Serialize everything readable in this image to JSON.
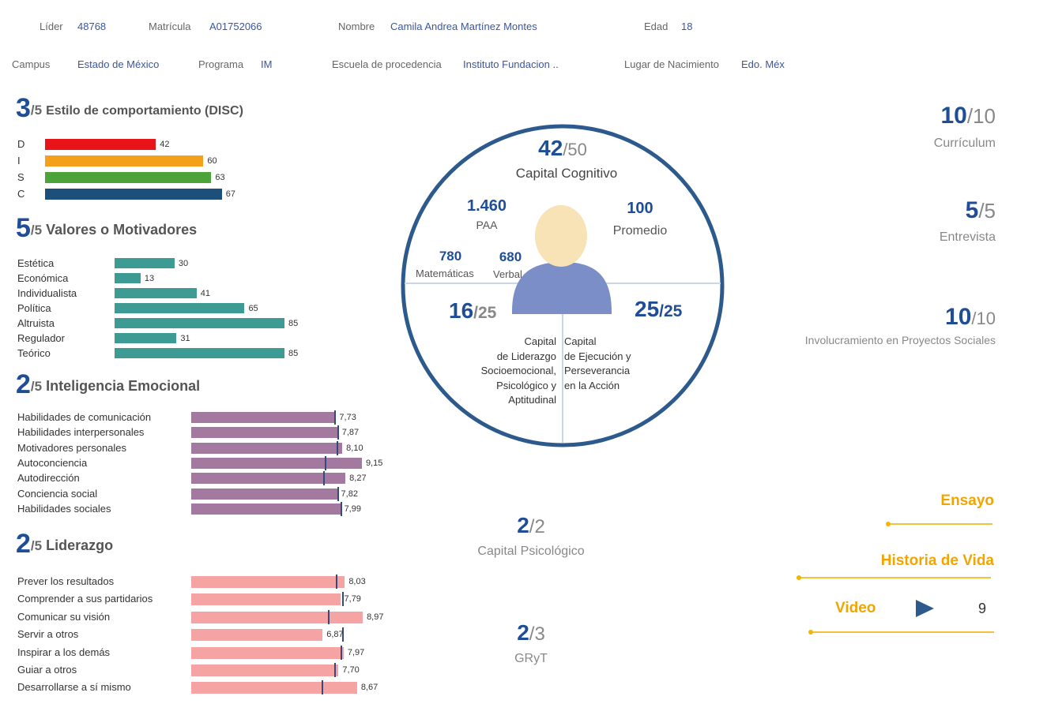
{
  "header": {
    "row1": [
      {
        "label": "Líder",
        "value": "48768"
      },
      {
        "label": "Matrícula",
        "value": "A01752066"
      },
      {
        "label": "Nombre",
        "value": "Camila Andrea Martínez Montes"
      },
      {
        "label": "Edad",
        "value": "18"
      }
    ],
    "row2": [
      {
        "label": "Campus",
        "value": "Estado de México"
      },
      {
        "label": "Programa",
        "value": "IM"
      },
      {
        "label": "Escuela de procedencia",
        "value": "Instituto Fundacion .."
      },
      {
        "label": "Lugar de Nacimiento",
        "value": "Edo. Méx"
      }
    ]
  },
  "colors": {
    "primary": "#1f4e96",
    "disc": [
      "#e8141a",
      "#f5a01a",
      "#4ba33a",
      "#1c4f7a"
    ],
    "valores": "#3d9b94",
    "emocional": "#a4799f",
    "liderazgo": "#f5a3a3",
    "marker": "#334a7a",
    "accent": "#f0a500"
  },
  "disc": {
    "score": "3",
    "den": "/5",
    "title": "Estilo de comportamiento (DISC)",
    "items": [
      {
        "label": "D",
        "value": 42
      },
      {
        "label": "I",
        "value": 60
      },
      {
        "label": "S",
        "value": 63
      },
      {
        "label": "C",
        "value": 67
      }
    ]
  },
  "valores": {
    "score": "5",
    "den": "/5",
    "title": "Valores o Motivadores",
    "items": [
      {
        "label": "Estética",
        "value": 30
      },
      {
        "label": "Económica",
        "value": 13
      },
      {
        "label": "Individualista",
        "value": 41
      },
      {
        "label": "Política",
        "value": 65
      },
      {
        "label": "Altruista",
        "value": 85
      },
      {
        "label": "Regulador",
        "value": 31
      },
      {
        "label": "Teórico",
        "value": 85
      }
    ]
  },
  "emocional": {
    "score": "2",
    "den": "/5",
    "title": "Inteligencia Emocional",
    "items": [
      {
        "label": "Habilidades de comunicación",
        "value": "7,73",
        "num": 7.73,
        "ref": 7.7
      },
      {
        "label": "Habilidades interpersonales",
        "value": "7,87",
        "num": 7.87,
        "ref": 7.9
      },
      {
        "label": "Motivadores personales",
        "value": "8,10",
        "num": 8.1,
        "ref": 7.85
      },
      {
        "label": "Autoconciencia",
        "value": "9,15",
        "num": 9.15,
        "ref": 7.2
      },
      {
        "label": "Autodirección",
        "value": "8,27",
        "num": 8.27,
        "ref": 7.1
      },
      {
        "label": "Conciencia social",
        "value": "7,82",
        "num": 7.82,
        "ref": 7.9
      },
      {
        "label": "Habilidades sociales",
        "value": "7,99",
        "num": 7.99,
        "ref": 8.05
      }
    ]
  },
  "liderazgo": {
    "score": "2",
    "den": "/5",
    "title": "Liderazgo",
    "items": [
      {
        "label": "Prever los resultados",
        "value": "8,03",
        "num": 8.03,
        "ref": 7.6
      },
      {
        "label": "Comprender a sus partidarios",
        "value": "7,79",
        "num": 7.79,
        "ref": 7.95
      },
      {
        "label": "Comunicar su visión",
        "value": "8,97",
        "num": 8.97,
        "ref": 7.2
      },
      {
        "label": "Servir a otros",
        "value": "6,87",
        "num": 6.87,
        "ref": 7.95
      },
      {
        "label": "Inspirar a los demás",
        "value": "7,97",
        "num": 7.97,
        "ref": 7.85
      },
      {
        "label": "Guiar a otros",
        "value": "7,70",
        "num": 7.7,
        "ref": 7.5
      },
      {
        "label": "Desarrollarse a sí mismo",
        "value": "8,67",
        "num": 8.67,
        "ref": 6.85
      }
    ]
  },
  "circle": {
    "cognitivo": {
      "score": "42",
      "den": "/50",
      "label": "Capital Cognitivo"
    },
    "paa": {
      "value": "1.460",
      "label": "PAA"
    },
    "promedio": {
      "value": "100",
      "label": "Promedio"
    },
    "matematicas": {
      "value": "780",
      "label": "Matemáticas"
    },
    "verbal": {
      "value": "680",
      "label": "Verbal"
    },
    "liderazgo": {
      "score": "16",
      "den": "/25",
      "lines": [
        "Capital",
        "de Liderazgo",
        "Socioemocional,",
        "Psicológico y",
        "Aptitudinal"
      ]
    },
    "ejecucion": {
      "score": "25",
      "den": "/25",
      "lines": [
        "Capital",
        "de Ejecución y",
        "Perseverancia",
        "en la Acción"
      ]
    }
  },
  "right": {
    "curriculum": {
      "score": "10",
      "den": "/10",
      "label": "Currículum"
    },
    "entrevista": {
      "score": "5",
      "den": "/5",
      "label": "Entrevista"
    },
    "involucramiento": {
      "score": "10",
      "den": "/10",
      "label": "Involucramiento en Proyectos Sociales"
    }
  },
  "middle": {
    "psicologico": {
      "score": "2",
      "den": "/2",
      "label": "Capital Psicológico"
    },
    "gryt": {
      "score": "2",
      "den": "/3",
      "label": "GRyT"
    }
  },
  "links": {
    "ensayo": "Ensayo",
    "historia": "Historia de Vida",
    "video": "Video",
    "video_count": "9"
  }
}
